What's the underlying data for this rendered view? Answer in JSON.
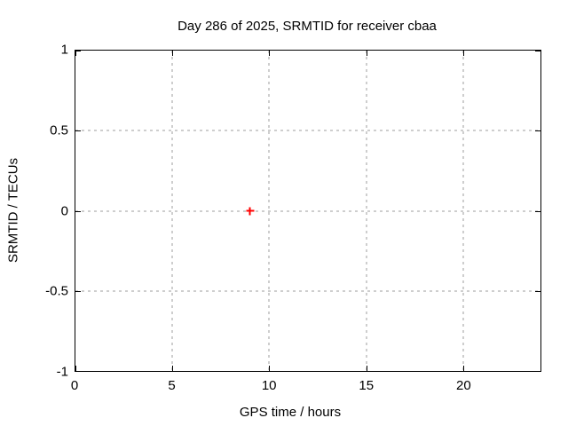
{
  "chart_data": {
    "type": "scatter",
    "title": "Day 286 of 2025, SRMTID for receiver cbaa",
    "xlabel": "GPS time / hours",
    "ylabel": "SRMTID / TECUs",
    "xlim": [
      0,
      24
    ],
    "ylim": [
      -1,
      1
    ],
    "xticks": [
      0,
      5,
      10,
      15,
      20
    ],
    "yticks": [
      -1,
      -0.5,
      0,
      0.5,
      1
    ],
    "grid": true,
    "legend": "none",
    "series": [
      {
        "name": "SRMTID",
        "marker": "plus",
        "color": "#ff0000",
        "points": [
          {
            "x": 9.0,
            "y": 0.0
          }
        ]
      }
    ]
  },
  "colors": {
    "marker": "#ff0000",
    "grid": "#9e9e9e",
    "border": "#000000",
    "background": "#ffffff",
    "text": "#000000"
  }
}
